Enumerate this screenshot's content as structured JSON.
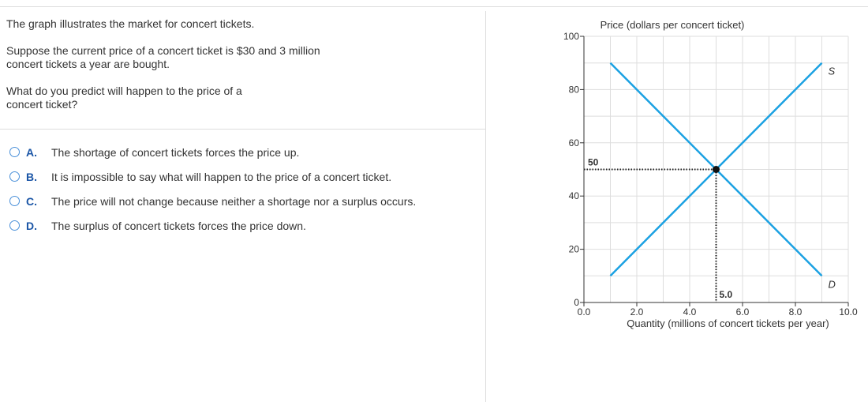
{
  "question": {
    "paragraphs": [
      "The graph illustrates the market for concert tickets.",
      "Suppose the current price of a concert ticket is $30 and 3 million concert tickets a year are bought.",
      "What do you predict will happen to the price of a concert ticket?"
    ],
    "options": [
      {
        "letter": "A.",
        "text": "The shortage of concert tickets forces the price up."
      },
      {
        "letter": "B.",
        "text": "It is impossible to say what will happen to the price of a concert ticket."
      },
      {
        "letter": "C.",
        "text": "The price will not change because neither a shortage nor a surplus occurs."
      },
      {
        "letter": "D.",
        "text": "The surplus of concert tickets forces the price down."
      }
    ]
  },
  "chart_data": {
    "type": "line",
    "y_label": "Price (dollars per concert ticket)",
    "x_label": "Quantity (millions of concert tickets per year)",
    "xlim": [
      0,
      10
    ],
    "ylim": [
      0,
      100
    ],
    "xticks": [
      {
        "value": 0,
        "label": "0.0"
      },
      {
        "value": 2,
        "label": "2.0"
      },
      {
        "value": 4,
        "label": "4.0"
      },
      {
        "value": 6,
        "label": "6.0"
      },
      {
        "value": 8,
        "label": "8.0"
      },
      {
        "value": 10,
        "label": "10.0"
      }
    ],
    "yticks": [
      0,
      20,
      40,
      60,
      80,
      100
    ],
    "xgrid": [
      1,
      2,
      3,
      4,
      5,
      6,
      7,
      8,
      9,
      10
    ],
    "ygrid": [
      10,
      20,
      30,
      40,
      50,
      60,
      70,
      80,
      90,
      100
    ],
    "grid": true,
    "series": [
      {
        "name": "S",
        "color": "#1ba1e2",
        "x": [
          1,
          9
        ],
        "values": [
          10,
          90
        ]
      },
      {
        "name": "D",
        "color": "#1ba1e2",
        "x": [
          1,
          9
        ],
        "values": [
          90,
          10
        ]
      }
    ],
    "equilibrium": {
      "x": {
        "value": 5,
        "label": "5.0"
      },
      "y": {
        "value": 50,
        "label": "50"
      }
    }
  }
}
